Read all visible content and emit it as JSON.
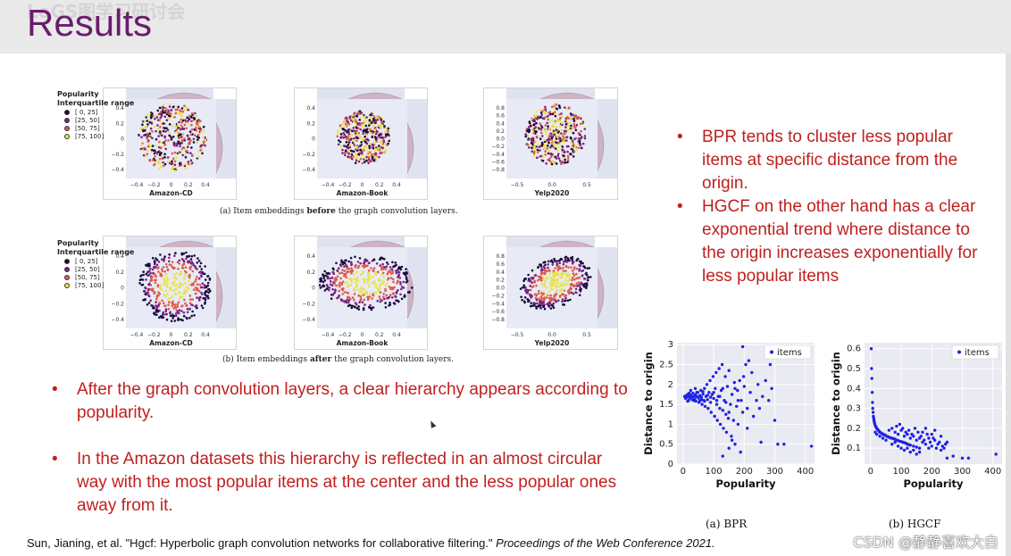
{
  "slide": {
    "title": "Results",
    "watermark": "LoGS图学习研讨会",
    "citation_prefix": "Sun, Jianing, et al. \"Hgcf: Hyperbolic graph convolution networks for collaborative filtering.\" ",
    "citation_venue": "Proceedings of the Web Conference 2021.",
    "csdn_mark": "CSDN @静静喜欢大白"
  },
  "figure_embeddings": {
    "legend_title_line1": "Popularity",
    "legend_title_line2": "Interquartile range",
    "legend_items": [
      "[ 0,  25]",
      "[25,  50]",
      "[50,  75]",
      "[75, 100]"
    ],
    "legend_colors": [
      "#1a0b3f",
      "#7b2482",
      "#e05a4a",
      "#e8e34a"
    ],
    "caption_a_prefix": "(a) Item embeddings ",
    "caption_a_bold": "before",
    "caption_a_suffix": " the graph convolution layers.",
    "caption_b_prefix": "(b) Item embeddings ",
    "caption_b_bold": "after",
    "caption_b_suffix": " the graph convolution layers.",
    "panels": [
      {
        "name": "Amazon-CD",
        "xticks": [
          "−0.4",
          "−0.2",
          "0",
          "0.2",
          "0.4"
        ],
        "yticks": [
          "0.4",
          "0.2",
          "0",
          "−0.2",
          "−0.4"
        ]
      },
      {
        "name": "Amazon-Book",
        "xticks": [
          "−0.4",
          "−0.2",
          "0",
          "0.2",
          "0.4"
        ],
        "yticks": [
          "0.4",
          "0.2",
          "0",
          "−0.2",
          "−0.4"
        ]
      },
      {
        "name": "Yelp2020",
        "xticks": [
          "−0.5",
          "0.0",
          "0.5"
        ],
        "yticks": [
          "0.8",
          "0.6",
          "0.4",
          "0.2",
          "0.0",
          "−0.2",
          "−0.4",
          "−0.6",
          "−0.8"
        ]
      },
      {
        "name": "Amazon-CD",
        "xticks": [
          "−0.4",
          "−0.2",
          "0",
          "0.2",
          "0.4"
        ],
        "yticks": [
          "0.4",
          "0.2",
          "0",
          "−0.2",
          "−0.4"
        ]
      },
      {
        "name": "Amazon-Book",
        "xticks": [
          "−0.4",
          "−0.2",
          "0",
          "0.2",
          "0.4"
        ],
        "yticks": [
          "0.4",
          "0.2",
          "0",
          "−0.2",
          "−0.4"
        ]
      },
      {
        "name": "Yelp2020",
        "xticks": [
          "−0.5",
          "0.0",
          "0.5"
        ],
        "yticks": [
          "0.8",
          "0.6",
          "0.4",
          "0.2",
          "0.0",
          "−0.2",
          "−0.4",
          "−0.6",
          "−0.8"
        ]
      }
    ]
  },
  "bullets_right": [
    "BPR tends to cluster less popular items at specific distance from the origin.",
    "HGCF on the other hand has a clear exponential trend where distance to the origin increases exponentially for less popular items"
  ],
  "bullets_left": [
    "After the graph convolution layers, a clear hierarchy appears according to popularity.",
    "In the Amazon datasets this hierarchy is reflected in an almost circular way with the most popular items at the center and the less popular ones away from it."
  ],
  "chart_data": [
    {
      "type": "scatter",
      "caption": "(a) BPR",
      "xlabel": "Popularity",
      "ylabel": "Distance to origin",
      "legend": "items",
      "legend_position": "top-right",
      "xlim": [
        -20,
        430
      ],
      "ylim": [
        0,
        3.05
      ],
      "xticks": [
        0,
        100,
        200,
        300,
        400
      ],
      "yticks": [
        0,
        0.5,
        1,
        1.5,
        2,
        2.5,
        3
      ],
      "yticklabels": [
        "0",
        "0.5",
        "1",
        "1.5",
        "2",
        "2.5",
        "3"
      ],
      "grid": true,
      "color": "#1f22e6",
      "points": [
        [
          5,
          1.7
        ],
        [
          8,
          1.65
        ],
        [
          10,
          1.72
        ],
        [
          12,
          1.68
        ],
        [
          15,
          1.75
        ],
        [
          18,
          1.6
        ],
        [
          20,
          1.7
        ],
        [
          22,
          1.66
        ],
        [
          25,
          1.73
        ],
        [
          28,
          1.69
        ],
        [
          30,
          1.62
        ],
        [
          32,
          1.78
        ],
        [
          35,
          1.7
        ],
        [
          38,
          1.64
        ],
        [
          40,
          1.74
        ],
        [
          42,
          1.58
        ],
        [
          45,
          1.7
        ],
        [
          48,
          1.8
        ],
        [
          50,
          1.66
        ],
        [
          52,
          1.55
        ],
        [
          55,
          1.72
        ],
        [
          58,
          1.85
        ],
        [
          60,
          1.68
        ],
        [
          62,
          1.5
        ],
        [
          65,
          1.76
        ],
        [
          68,
          1.6
        ],
        [
          70,
          1.9
        ],
        [
          72,
          1.45
        ],
        [
          75,
          1.7
        ],
        [
          78,
          2.0
        ],
        [
          80,
          1.62
        ],
        [
          82,
          1.4
        ],
        [
          85,
          1.8
        ],
        [
          88,
          2.1
        ],
        [
          90,
          1.55
        ],
        [
          92,
          1.3
        ],
        [
          95,
          1.75
        ],
        [
          98,
          2.2
        ],
        [
          100,
          1.65
        ],
        [
          103,
          1.2
        ],
        [
          105,
          1.9
        ],
        [
          108,
          2.3
        ],
        [
          110,
          1.5
        ],
        [
          112,
          1.1
        ],
        [
          115,
          1.7
        ],
        [
          118,
          2.4
        ],
        [
          120,
          1.4
        ],
        [
          122,
          1.0
        ],
        [
          125,
          1.85
        ],
        [
          128,
          2.5
        ],
        [
          130,
          1.35
        ],
        [
          132,
          0.9
        ],
        [
          135,
          1.6
        ],
        [
          138,
          2.2
        ],
        [
          140,
          1.25
        ],
        [
          142,
          0.8
        ],
        [
          145,
          1.95
        ],
        [
          148,
          1.15
        ],
        [
          150,
          2.35
        ],
        [
          155,
          1.5
        ],
        [
          158,
          0.7
        ],
        [
          160,
          1.75
        ],
        [
          165,
          1.1
        ],
        [
          168,
          2.05
        ],
        [
          170,
          0.5
        ],
        [
          175,
          1.45
        ],
        [
          178,
          1.85
        ],
        [
          180,
          1.0
        ],
        [
          185,
          2.1
        ],
        [
          188,
          0.3
        ],
        [
          190,
          1.6
        ],
        [
          195,
          1.3
        ],
        [
          198,
          2.2
        ],
        [
          200,
          1.95
        ],
        [
          205,
          2.5
        ],
        [
          210,
          1.4
        ],
        [
          215,
          2.6
        ],
        [
          220,
          1.8
        ],
        [
          225,
          2.3
        ],
        [
          230,
          1.2
        ],
        [
          240,
          1.6
        ],
        [
          245,
          2.0
        ],
        [
          250,
          1.4
        ],
        [
          255,
          0.55
        ],
        [
          260,
          1.7
        ],
        [
          270,
          2.1
        ],
        [
          280,
          1.6
        ],
        [
          285,
          2.5
        ],
        [
          290,
          1.9
        ],
        [
          300,
          1.1
        ],
        [
          310,
          0.5
        ],
        [
          330,
          0.5
        ],
        [
          420,
          0.45
        ],
        [
          195,
          2.95
        ],
        [
          60,
          1.62
        ],
        [
          70,
          1.58
        ],
        [
          80,
          1.73
        ],
        [
          90,
          1.68
        ],
        [
          100,
          1.8
        ],
        [
          110,
          1.6
        ],
        [
          120,
          1.7
        ],
        [
          130,
          1.9
        ],
        [
          140,
          1.55
        ],
        [
          45,
          1.8
        ],
        [
          55,
          1.59
        ],
        [
          65,
          1.82
        ],
        [
          35,
          1.6
        ],
        [
          25,
          1.85
        ],
        [
          15,
          1.58
        ],
        [
          160,
          0.6
        ],
        [
          150,
          0.4
        ],
        [
          130,
          0.2
        ],
        [
          20,
          1.78
        ],
        [
          40,
          1.9
        ],
        [
          150,
          1.3
        ],
        [
          170,
          1.9
        ],
        [
          180,
          1.6
        ],
        [
          210,
          0.9
        ]
      ]
    },
    {
      "type": "scatter",
      "caption": "(b) HGCF",
      "xlabel": "Popularity",
      "ylabel": "Distance to origin",
      "legend": "items",
      "legend_position": "top-right",
      "xlim": [
        -20,
        430
      ],
      "ylim": [
        0.02,
        0.63
      ],
      "xticks": [
        0,
        100,
        200,
        300,
        400
      ],
      "yticks": [
        0.1,
        0.2,
        0.3,
        0.4,
        0.5,
        0.6
      ],
      "yticklabels": [
        "0.1",
        "0.2",
        "0.3",
        "0.4",
        "0.5",
        "0.6"
      ],
      "grid": true,
      "color": "#1f22e6",
      "points": [
        [
          2,
          0.6
        ],
        [
          3,
          0.5
        ],
        [
          4,
          0.45
        ],
        [
          5,
          0.38
        ],
        [
          6,
          0.33
        ],
        [
          7,
          0.3
        ],
        [
          8,
          0.28
        ],
        [
          9,
          0.26
        ],
        [
          10,
          0.25
        ],
        [
          11,
          0.24
        ],
        [
          12,
          0.23
        ],
        [
          14,
          0.22
        ],
        [
          16,
          0.21
        ],
        [
          18,
          0.205
        ],
        [
          20,
          0.2
        ],
        [
          22,
          0.195
        ],
        [
          25,
          0.19
        ],
        [
          28,
          0.185
        ],
        [
          30,
          0.18
        ],
        [
          33,
          0.178
        ],
        [
          36,
          0.175
        ],
        [
          40,
          0.17
        ],
        [
          44,
          0.168
        ],
        [
          48,
          0.165
        ],
        [
          52,
          0.16
        ],
        [
          56,
          0.158
        ],
        [
          60,
          0.155
        ],
        [
          65,
          0.152
        ],
        [
          70,
          0.15
        ],
        [
          75,
          0.148
        ],
        [
          80,
          0.145
        ],
        [
          85,
          0.14
        ],
        [
          90,
          0.138
        ],
        [
          95,
          0.135
        ],
        [
          100,
          0.133
        ],
        [
          105,
          0.13
        ],
        [
          110,
          0.128
        ],
        [
          115,
          0.125
        ],
        [
          120,
          0.12
        ],
        [
          125,
          0.118
        ],
        [
          130,
          0.115
        ],
        [
          140,
          0.11
        ],
        [
          150,
          0.105
        ],
        [
          160,
          0.1
        ],
        [
          60,
          0.19
        ],
        [
          70,
          0.2
        ],
        [
          80,
          0.18
        ],
        [
          90,
          0.17
        ],
        [
          100,
          0.19
        ],
        [
          110,
          0.16
        ],
        [
          120,
          0.17
        ],
        [
          130,
          0.15
        ],
        [
          140,
          0.16
        ],
        [
          150,
          0.14
        ],
        [
          160,
          0.15
        ],
        [
          170,
          0.13
        ],
        [
          180,
          0.12
        ],
        [
          190,
          0.1
        ],
        [
          200,
          0.11
        ],
        [
          210,
          0.14
        ],
        [
          220,
          0.12
        ],
        [
          230,
          0.09
        ],
        [
          240,
          0.1
        ],
        [
          250,
          0.13
        ],
        [
          70,
          0.12
        ],
        [
          80,
          0.13
        ],
        [
          90,
          0.11
        ],
        [
          100,
          0.1
        ],
        [
          110,
          0.09
        ],
        [
          120,
          0.1
        ],
        [
          130,
          0.08
        ],
        [
          140,
          0.09
        ],
        [
          150,
          0.07
        ],
        [
          160,
          0.08
        ],
        [
          170,
          0.18
        ],
        [
          180,
          0.2
        ],
        [
          190,
          0.15
        ],
        [
          200,
          0.17
        ],
        [
          210,
          0.19
        ],
        [
          230,
          0.16
        ],
        [
          250,
          0.05
        ],
        [
          270,
          0.06
        ],
        [
          300,
          0.05
        ],
        [
          320,
          0.05
        ],
        [
          410,
          0.07
        ],
        [
          85,
          0.21
        ],
        [
          95,
          0.22
        ],
        [
          105,
          0.2
        ],
        [
          115,
          0.18
        ],
        [
          125,
          0.19
        ],
        [
          135,
          0.17
        ],
        [
          145,
          0.2
        ],
        [
          155,
          0.18
        ],
        [
          165,
          0.16
        ],
        [
          175,
          0.14
        ],
        [
          185,
          0.17
        ],
        [
          195,
          0.13
        ],
        [
          205,
          0.15
        ],
        [
          215,
          0.1
        ],
        [
          225,
          0.13
        ],
        [
          235,
          0.11
        ],
        [
          245,
          0.12
        ],
        [
          50,
          0.14
        ],
        [
          40,
          0.15
        ],
        [
          30,
          0.16
        ],
        [
          20,
          0.17
        ],
        [
          15,
          0.18
        ]
      ]
    }
  ]
}
